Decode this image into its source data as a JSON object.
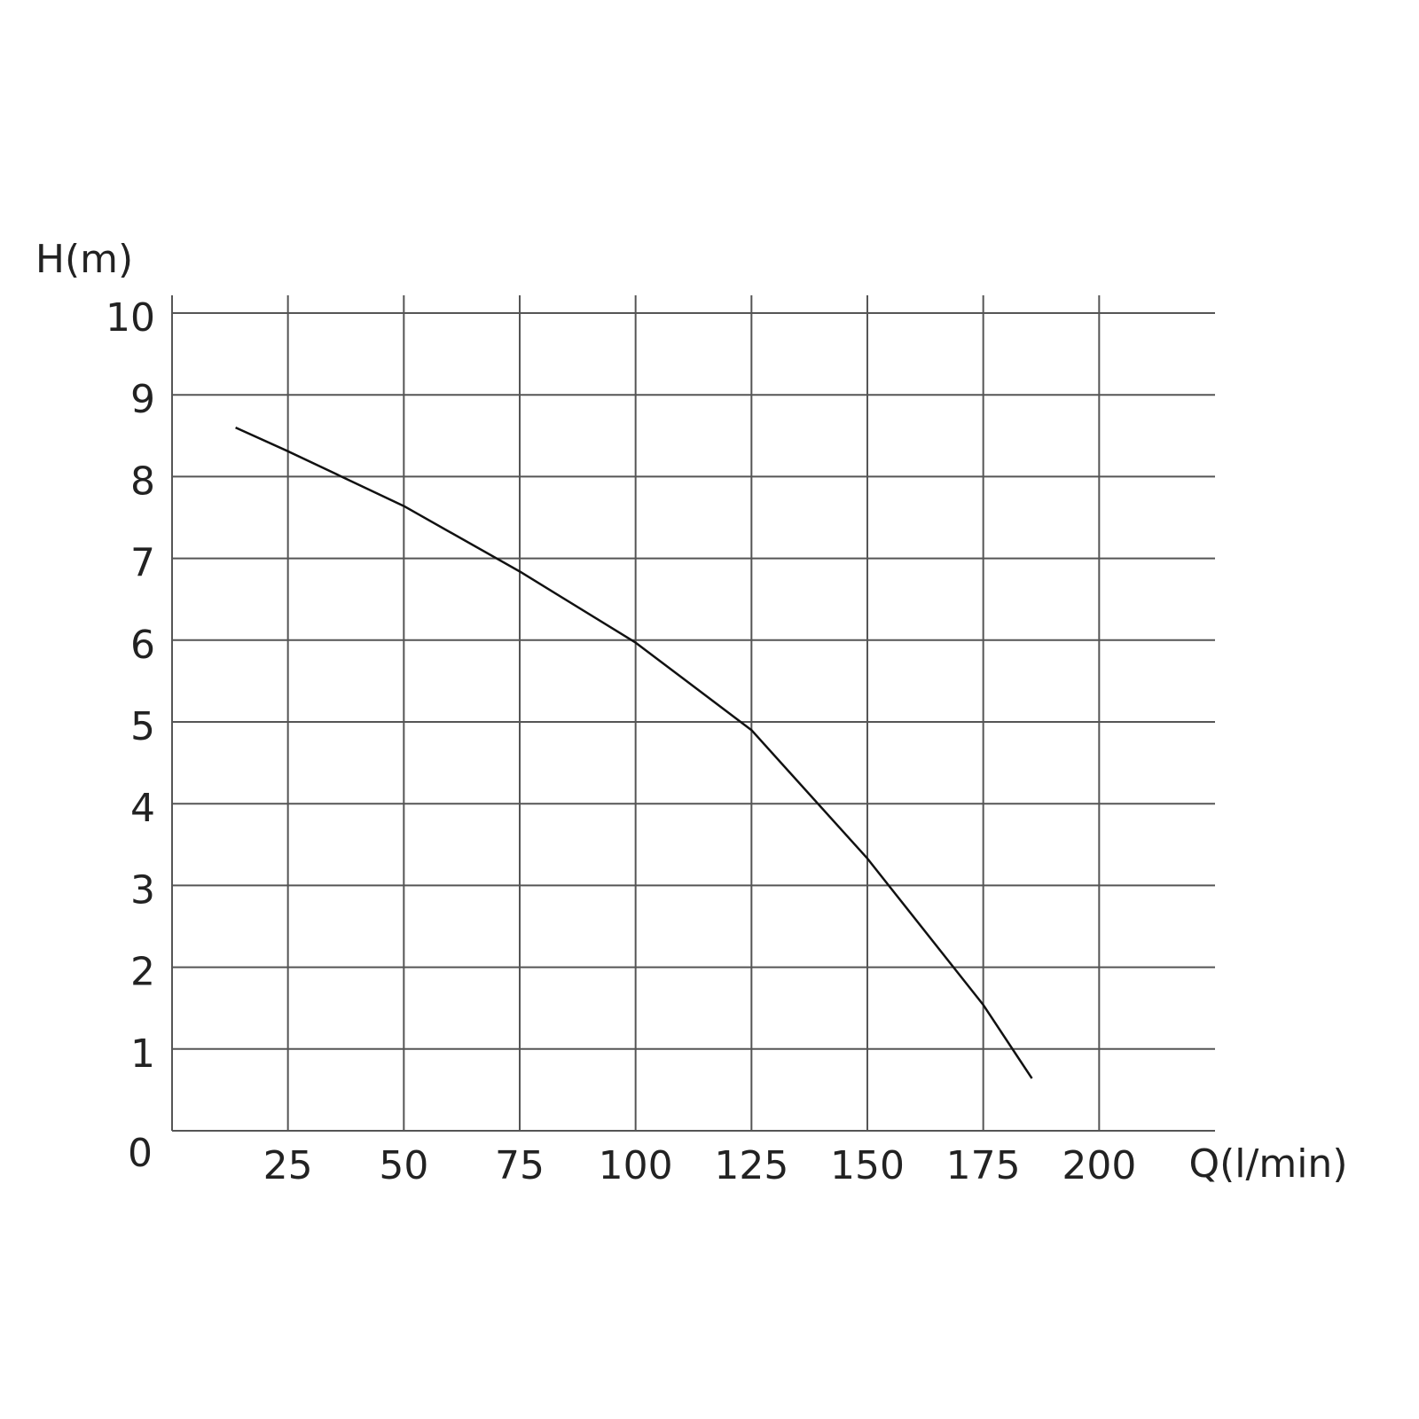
{
  "chart_data": {
    "type": "line",
    "y_label": "H(m)",
    "x_label": "Q(l/min)",
    "x": [
      13.7,
      25,
      50,
      75,
      100,
      125,
      150,
      175,
      185.5
    ],
    "series": [
      {
        "color": "#111111",
        "values": [
          8.6,
          8.31,
          7.64,
          6.84,
          5.97,
          4.9,
          3.33,
          1.54,
          0.64
        ]
      }
    ],
    "xlim": [
      0,
      225
    ],
    "ylim": [
      0,
      10
    ],
    "xticks": [
      25,
      50,
      75,
      100,
      125,
      150,
      175,
      200
    ],
    "yticks": [
      0,
      1,
      2,
      3,
      4,
      5,
      6,
      7,
      8,
      9,
      10
    ],
    "grid": true
  }
}
